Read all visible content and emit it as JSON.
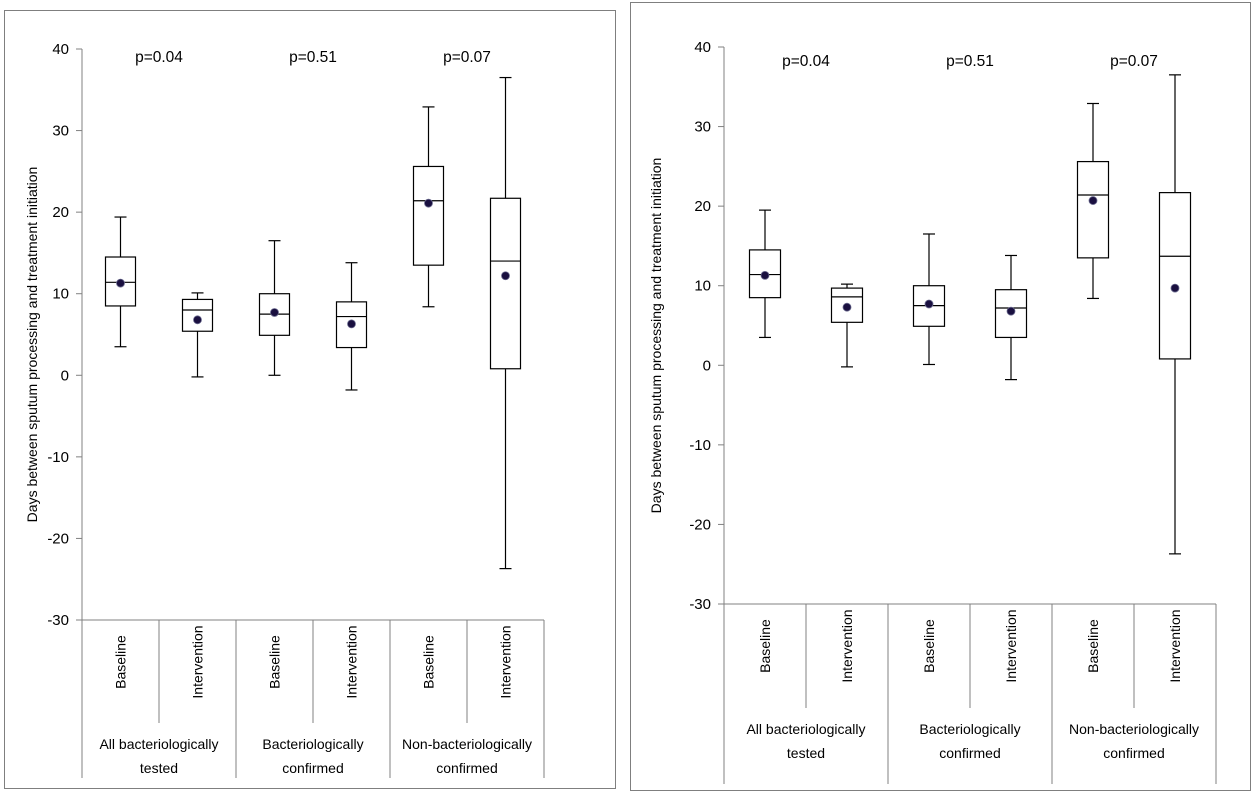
{
  "chart_data": [
    {
      "type": "box",
      "ylabel": "Days  between sputum processing and treatment initiation",
      "ylim": [
        -30,
        40
      ],
      "yticks": [
        40,
        30,
        20,
        10,
        0,
        -10,
        -20,
        -30
      ],
      "groups": [
        {
          "label_lines": [
            "All bacteriologically",
            "tested"
          ],
          "p_value": "p=0.04"
        },
        {
          "label_lines": [
            "Bacteriologically",
            "confirmed"
          ],
          "p_value": "p=0.51"
        },
        {
          "label_lines": [
            "Non-bacteriologically",
            "confirmed"
          ],
          "p_value": "p=0.07"
        }
      ],
      "boxes": [
        {
          "group": 0,
          "label": "Baseline",
          "min": 3.5,
          "q1": 8.5,
          "median": 11.4,
          "q3": 14.5,
          "max": 19.4,
          "mean": 11.3
        },
        {
          "group": 0,
          "label": "Intervention",
          "min": -0.2,
          "q1": 5.4,
          "median": 8.0,
          "q3": 9.3,
          "max": 10.1,
          "mean": 6.8
        },
        {
          "group": 1,
          "label": "Baseline",
          "min": 0.0,
          "q1": 4.9,
          "median": 7.5,
          "q3": 10.0,
          "max": 16.5,
          "mean": 7.7
        },
        {
          "group": 1,
          "label": "Intervention",
          "min": -1.8,
          "q1": 3.4,
          "median": 7.2,
          "q3": 9.0,
          "max": 13.8,
          "mean": 6.3
        },
        {
          "group": 2,
          "label": "Baseline",
          "min": 8.4,
          "q1": 13.5,
          "median": 21.4,
          "q3": 25.6,
          "max": 32.9,
          "mean": 21.1
        },
        {
          "group": 2,
          "label": "Intervention",
          "min": -23.7,
          "q1": 0.8,
          "median": 14.0,
          "q3": 21.7,
          "max": 36.5,
          "mean": 12.2
        }
      ]
    },
    {
      "type": "box",
      "ylabel": "Days  between sputum processing and treatment initiation",
      "ylim": [
        -30,
        40
      ],
      "yticks": [
        40,
        30,
        20,
        10,
        0,
        -10,
        -20,
        -30
      ],
      "groups": [
        {
          "label_lines": [
            "All bacteriologically",
            "tested"
          ],
          "p_value": "p=0.04"
        },
        {
          "label_lines": [
            "Bacteriologically",
            "confirmed"
          ],
          "p_value": "p=0.51"
        },
        {
          "label_lines": [
            "Non-bacteriologically",
            "confirmed"
          ],
          "p_value": "p=0.07"
        }
      ],
      "boxes": [
        {
          "group": 0,
          "label": "Baseline",
          "min": 3.5,
          "q1": 8.5,
          "median": 11.4,
          "q3": 14.5,
          "max": 19.5,
          "mean": 11.3
        },
        {
          "group": 0,
          "label": "Intervention",
          "min": -0.2,
          "q1": 5.4,
          "median": 8.6,
          "q3": 9.7,
          "max": 10.2,
          "mean": 7.3
        },
        {
          "group": 1,
          "label": "Baseline",
          "min": 0.1,
          "q1": 4.9,
          "median": 7.5,
          "q3": 10.0,
          "max": 16.5,
          "mean": 7.7
        },
        {
          "group": 1,
          "label": "Intervention",
          "min": -1.8,
          "q1": 3.5,
          "median": 7.2,
          "q3": 9.5,
          "max": 13.8,
          "mean": 6.8
        },
        {
          "group": 2,
          "label": "Baseline",
          "min": 8.4,
          "q1": 13.5,
          "median": 21.4,
          "q3": 25.6,
          "max": 32.9,
          "mean": 20.7
        },
        {
          "group": 2,
          "label": "Intervention",
          "min": -23.7,
          "q1": 0.8,
          "median": 13.7,
          "q3": 21.7,
          "max": 36.5,
          "mean": 9.7
        }
      ]
    }
  ],
  "colors": {
    "box_stroke": "#000000",
    "mean_dot_fill": "#1a1040",
    "axis": "#808080",
    "panel_border": "#7f7f7f"
  }
}
